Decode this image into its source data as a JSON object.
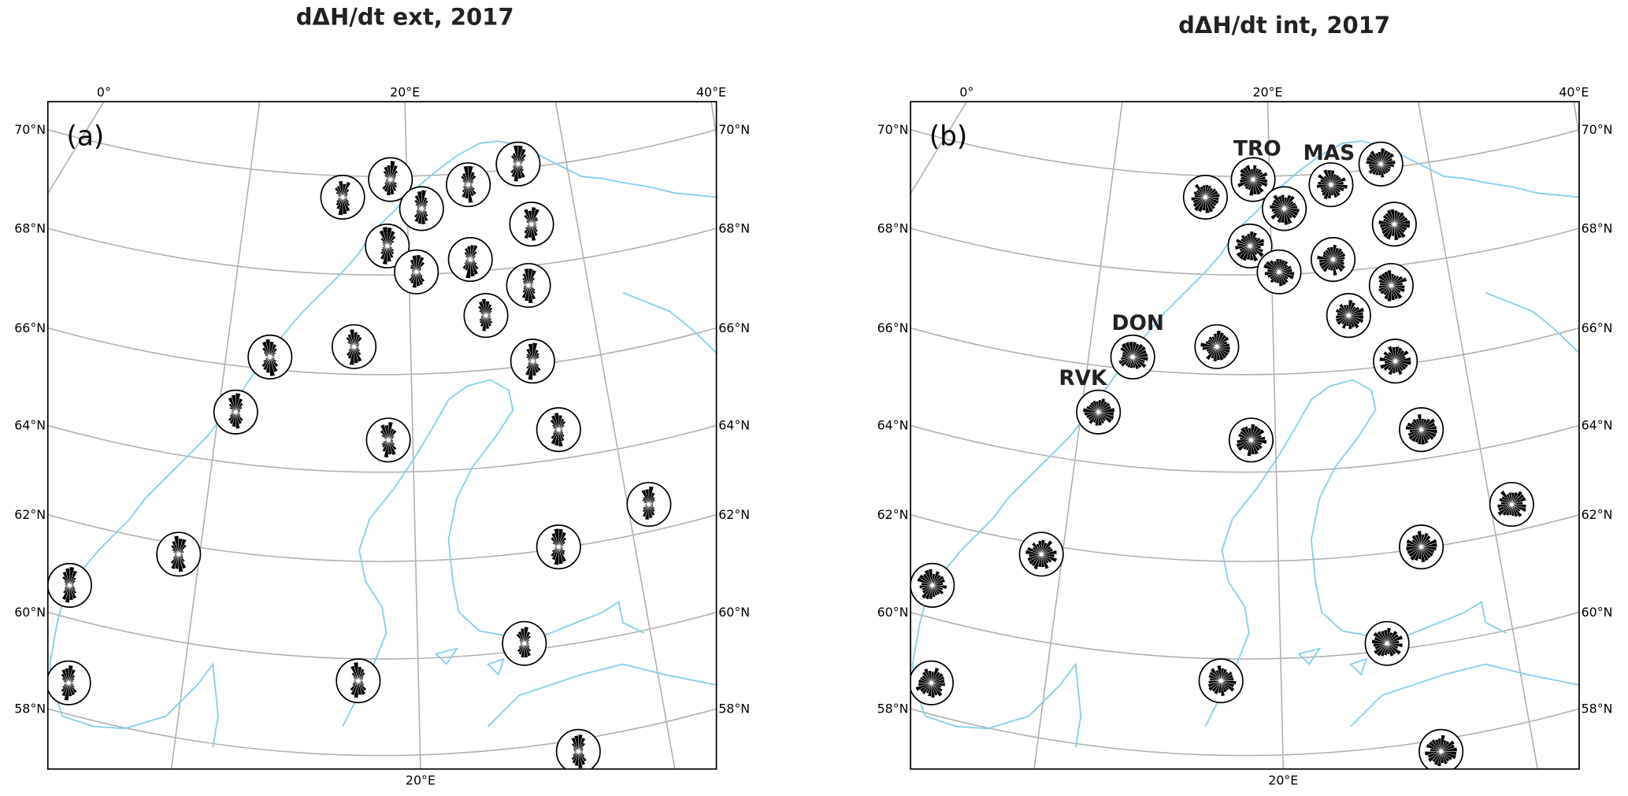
{
  "panels": [
    {
      "title": "dΔH/dt ext, 2017",
      "label": "(a)"
    },
    {
      "title": "dΔH/dt int, 2017",
      "label": "(b)",
      "station_labels": [
        "TRO",
        "MAS",
        "DON",
        "RVK"
      ]
    }
  ],
  "lat_labels": [
    "70°N",
    "68°N",
    "66°N",
    "64°N",
    "62°N",
    "60°N",
    "58°N"
  ],
  "lon_labels_top": [
    "0°",
    "20°E",
    "40°E"
  ],
  "lon_labels_bottom": [
    "20°E"
  ]
}
